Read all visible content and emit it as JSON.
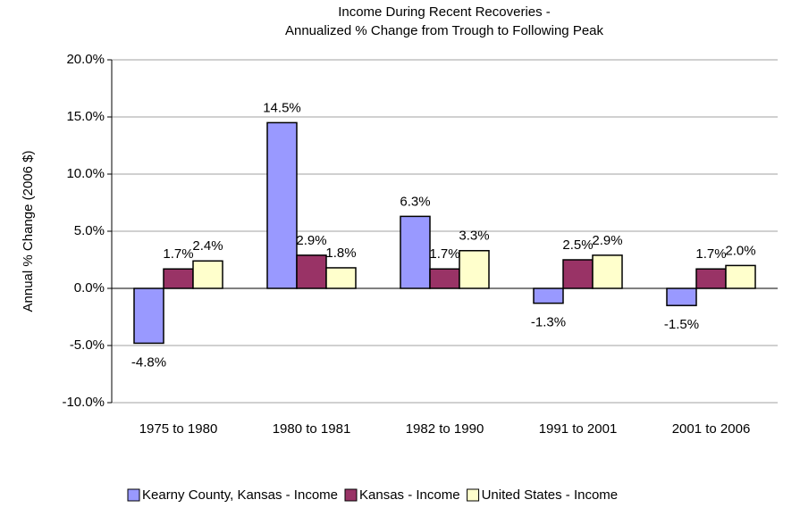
{
  "chart_data": {
    "type": "bar",
    "title": [
      "Income During Recent Recoveries -",
      "Annualized % Change from Trough to Following Peak"
    ],
    "y_label": "Annual % Change (2006 $)",
    "categories": [
      "1975 to 1980",
      "1980 to 1981",
      "1982 to 1990",
      "1991 to 2001",
      "2001 to 2006"
    ],
    "series": [
      {
        "name": "Kearny County, Kansas - Income",
        "color": "#9999ff",
        "values": [
          -4.8,
          14.5,
          6.3,
          -1.3,
          -1.5
        ],
        "value_labels": [
          "-4.8%",
          "14.5%",
          "6.3%",
          "-1.3%",
          "-1.5%"
        ]
      },
      {
        "name": "Kansas - Income",
        "color": "#993366",
        "values": [
          1.7,
          2.9,
          1.7,
          2.5,
          1.7
        ],
        "value_labels": [
          "1.7%",
          "2.9%",
          "1.7%",
          "2.5%",
          "1.7%"
        ]
      },
      {
        "name": "United States - Income",
        "color": "#ffffcc",
        "values": [
          2.4,
          1.8,
          3.3,
          2.9,
          2.0
        ],
        "value_labels": [
          "2.4%",
          "1.8%",
          "3.3%",
          "2.9%",
          "2.0%"
        ]
      }
    ],
    "ylim": [
      -10,
      20
    ],
    "yticks": [
      {
        "value": -10,
        "label": "-10.0%"
      },
      {
        "value": -5,
        "label": "-5.0%"
      },
      {
        "value": 0,
        "label": "0.0%"
      },
      {
        "value": 5,
        "label": "5.0%"
      },
      {
        "value": 10,
        "label": "10.0%"
      },
      {
        "value": 15,
        "label": "15.0%"
      },
      {
        "value": 20,
        "label": "20.0%"
      }
    ],
    "grid": true,
    "legend": "bottom"
  }
}
